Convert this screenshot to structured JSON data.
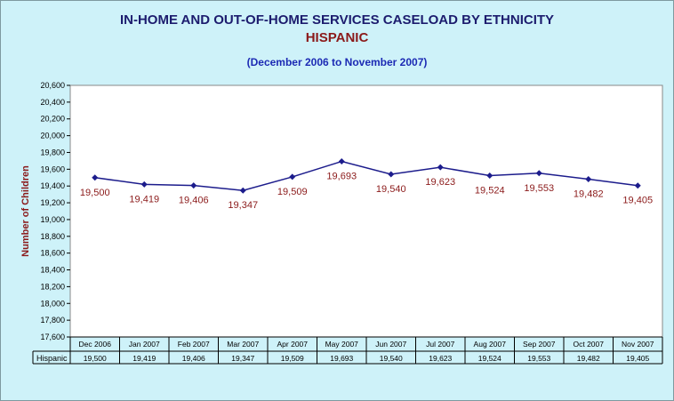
{
  "colors": {
    "background": "#cef2f9",
    "line": "#1c1c8c",
    "label": "#8b1a1a",
    "title": "#1c1c6e",
    "subtitle": "#8b1a1a",
    "range": "#1c2ab4"
  },
  "chart_data": {
    "type": "line",
    "title": "IN-HOME AND OUT-OF-HOME SERVICES CASELOAD BY ETHNICITY",
    "subtitle": "HISPANIC",
    "range_label": "(December 2006 to November 2007)",
    "ylabel": "Number of Children",
    "ylim": [
      17600,
      20600
    ],
    "ystep": 200,
    "grid": false,
    "categories": [
      "Dec 2006",
      "Jan 2007",
      "Feb 2007",
      "Mar 2007",
      "Apr 2007",
      "May 2007",
      "Jun 2007",
      "Jul 2007",
      "Aug 2007",
      "Sep 2007",
      "Oct 2007",
      "Nov 2007"
    ],
    "series": [
      {
        "name": "Hispanic",
        "values": [
          19500,
          19419,
          19406,
          19347,
          19509,
          19693,
          19540,
          19623,
          19524,
          19553,
          19482,
          19405
        ]
      }
    ]
  }
}
